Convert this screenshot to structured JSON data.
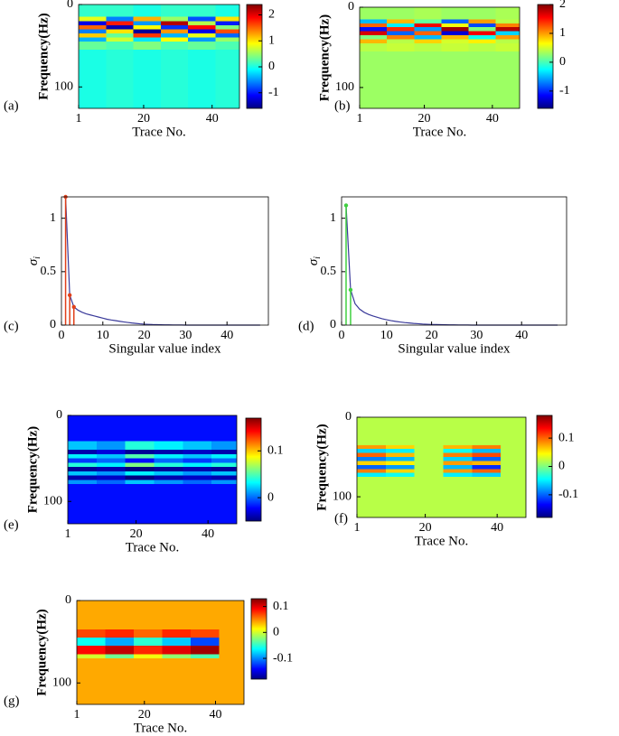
{
  "chart_data": [
    {
      "type": "heatmap",
      "label": "(a)",
      "xlabel": "Trace No.",
      "ylabel": "Frequency(Hz)",
      "xlim": [
        1,
        48
      ],
      "ylim": [
        0,
        126
      ],
      "xticks": [
        1,
        20,
        40
      ],
      "yticks": [
        0,
        100
      ],
      "clim": [
        -1.6,
        2.4
      ],
      "cticks": [
        -1,
        0,
        1,
        2
      ],
      "colormap": "jet",
      "xbins": [
        1,
        9,
        17,
        25,
        33,
        41,
        48
      ],
      "ybins": [
        0,
        15,
        20,
        25,
        30,
        35,
        40,
        45,
        55,
        126
      ],
      "values": [
        [
          0.1,
          0.1,
          0,
          0.1,
          0.1,
          0
        ],
        [
          0.8,
          -0.6,
          1.2,
          0.5,
          -0.8,
          1.0
        ],
        [
          -1.2,
          1.8,
          -0.5,
          2.2,
          0.6,
          -1.0
        ],
        [
          1.5,
          -1.4,
          0.9,
          -0.9,
          1.9,
          0.4
        ],
        [
          -0.6,
          1.0,
          -1.5,
          1.3,
          -1.2,
          1.6
        ],
        [
          1.1,
          0.3,
          1.7,
          -0.4,
          0.8,
          -0.7
        ],
        [
          -0.4,
          0.7,
          -0.2,
          0.9,
          -0.5,
          0.5
        ],
        [
          0.3,
          0.2,
          0.4,
          0.2,
          0.3,
          0.2
        ],
        [
          0,
          0.05,
          0,
          0.05,
          0,
          0.05
        ]
      ]
    },
    {
      "type": "heatmap",
      "label": "(b)",
      "xlabel": "Trace No.",
      "ylabel": "Frequency(Hz)",
      "xlim": [
        1,
        48
      ],
      "ylim": [
        0,
        126
      ],
      "xticks": [
        1,
        20,
        40
      ],
      "yticks": [
        0,
        100
      ],
      "clim": [
        -1.6,
        2
      ],
      "cticks": [
        -1,
        0,
        1,
        2
      ],
      "colormap": "jet",
      "xbins": [
        1,
        9,
        17,
        25,
        33,
        41,
        48
      ],
      "ybins": [
        0,
        15,
        20,
        25,
        30,
        35,
        40,
        45,
        55,
        126
      ],
      "values": [
        [
          0.3,
          0.3,
          0.35,
          0.3,
          0.3,
          0.35
        ],
        [
          -0.5,
          0.9,
          0.1,
          -0.8,
          1.0,
          0.4
        ],
        [
          1.2,
          -0.3,
          1.6,
          0.6,
          -0.9,
          1.1
        ],
        [
          -1.1,
          1.4,
          -0.6,
          1.9,
          0.2,
          1.8
        ],
        [
          1.7,
          -0.8,
          1.2,
          -1.3,
          1.6,
          -0.4
        ],
        [
          0.2,
          1.1,
          -0.5,
          0.9,
          -0.2,
          1.0
        ],
        [
          0.9,
          0.4,
          0.8,
          0.5,
          0.7,
          0.4
        ],
        [
          0.4,
          0.45,
          0.4,
          0.45,
          0.4,
          0.45
        ],
        [
          0.3,
          0.3,
          0.3,
          0.3,
          0.3,
          0.3
        ]
      ]
    },
    {
      "type": "line",
      "label": "(c)",
      "xlabel": "Singular value index",
      "ylabel": "σ",
      "ylabel_sub": "i",
      "xlim": [
        0,
        50
      ],
      "ylim": [
        0,
        1.2
      ],
      "xticks": [
        0,
        10,
        20,
        30,
        40
      ],
      "yticks": [
        0,
        0.5,
        1
      ],
      "series": [
        {
          "color": "#3a3a9a",
          "x": [
            1,
            2,
            3,
            4,
            5,
            6,
            7,
            8,
            9,
            10,
            11,
            12,
            13,
            14,
            15,
            16,
            17,
            18,
            19,
            20,
            21,
            22,
            23,
            24,
            25,
            26,
            27,
            28,
            29,
            30,
            31,
            32,
            33,
            34,
            35,
            36,
            37,
            38,
            39,
            40,
            41,
            42,
            43,
            44,
            45,
            46,
            47,
            48
          ],
          "values": [
            1.2,
            0.28,
            0.17,
            0.14,
            0.12,
            0.105,
            0.095,
            0.085,
            0.075,
            0.065,
            0.055,
            0.048,
            0.042,
            0.036,
            0.03,
            0.025,
            0.02,
            0.016,
            0.012,
            0.009,
            0.007,
            0.005,
            0.004,
            0.003,
            0.002,
            0.002,
            0.001,
            0.001,
            0.001,
            0,
            0,
            0,
            0,
            0,
            0,
            0,
            0,
            0,
            0,
            0,
            0,
            0,
            0,
            0,
            0,
            0,
            0,
            0
          ]
        }
      ],
      "stems": {
        "color": "#e0401a",
        "x": [
          1,
          2,
          3
        ],
        "values": [
          1.2,
          0.28,
          0.17
        ]
      }
    },
    {
      "type": "line",
      "label": "(d)",
      "xlabel": "Singular value index",
      "ylabel": "σ",
      "ylabel_sub": "i",
      "xlim": [
        0,
        50
      ],
      "ylim": [
        0,
        1.2
      ],
      "xticks": [
        0,
        10,
        20,
        30,
        40
      ],
      "yticks": [
        0,
        0.5,
        1
      ],
      "series": [
        {
          "color": "#3a3a9a",
          "x": [
            1,
            2,
            3,
            4,
            5,
            6,
            7,
            8,
            9,
            10,
            11,
            12,
            13,
            14,
            15,
            16,
            17,
            18,
            19,
            20,
            21,
            22,
            23,
            24,
            25,
            26,
            27,
            28,
            29,
            30,
            31,
            32,
            33,
            34,
            35,
            36,
            37,
            38,
            39,
            40,
            41,
            42,
            43,
            44,
            45,
            46,
            47,
            48
          ],
          "values": [
            1.12,
            0.33,
            0.2,
            0.15,
            0.12,
            0.1,
            0.085,
            0.072,
            0.06,
            0.05,
            0.042,
            0.035,
            0.029,
            0.024,
            0.02,
            0.016,
            0.013,
            0.01,
            0.008,
            0.006,
            0.005,
            0.004,
            0.003,
            0.002,
            0.002,
            0.001,
            0.001,
            0.001,
            0,
            0,
            0,
            0,
            0,
            0,
            0,
            0,
            0,
            0,
            0,
            0,
            0,
            0,
            0,
            0,
            0,
            0,
            0,
            0
          ]
        }
      ],
      "stems": {
        "color": "#40d040",
        "x": [
          1,
          2
        ],
        "values": [
          1.12,
          0.33
        ]
      }
    },
    {
      "type": "heatmap",
      "label": "(e)",
      "xlabel": "Trace No.",
      "ylabel": "Frequency(Hz)",
      "xlim": [
        1,
        48
      ],
      "ylim": [
        0,
        126
      ],
      "xticks": [
        1,
        20,
        40
      ],
      "yticks": [
        0,
        100
      ],
      "clim": [
        -0.05,
        0.17
      ],
      "cticks": [
        0,
        0.1
      ],
      "colormap": "jet",
      "xbins": [
        1,
        9,
        17,
        25,
        33,
        41,
        48
      ],
      "ybins": [
        0,
        30,
        40,
        45,
        50,
        55,
        60,
        65,
        70,
        75,
        80,
        126
      ],
      "values": [
        [
          -0.02,
          -0.02,
          -0.02,
          -0.02,
          -0.02,
          -0.02
        ],
        [
          0.02,
          0.01,
          0.04,
          0.03,
          0.02,
          0.01
        ],
        [
          -0.04,
          -0.03,
          -0.045,
          -0.04,
          -0.035,
          -0.04
        ],
        [
          0.03,
          0.02,
          0.05,
          0.03,
          0.02,
          0.03
        ],
        [
          -0.01,
          0,
          -0.02,
          0,
          -0.01,
          0
        ],
        [
          0.04,
          0.03,
          0.06,
          0.04,
          0.03,
          0.04
        ],
        [
          -0.045,
          -0.04,
          -0.05,
          -0.045,
          -0.04,
          -0.045
        ],
        [
          0.02,
          0.01,
          0.03,
          0.02,
          0.01,
          0.02
        ],
        [
          -0.04,
          -0.035,
          -0.05,
          -0.04,
          -0.035,
          -0.04
        ],
        [
          0.01,
          0,
          0.02,
          0.01,
          0,
          0.01
        ],
        [
          -0.02,
          -0.02,
          -0.02,
          -0.02,
          -0.02,
          -0.02
        ]
      ]
    },
    {
      "type": "heatmap",
      "label": "(f)",
      "xlabel": "Trace No.",
      "ylabel": "Frequency(Hz)",
      "xlim": [
        1,
        48
      ],
      "ylim": [
        0,
        126
      ],
      "xticks": [
        1,
        20,
        40
      ],
      "yticks": [
        0,
        100
      ],
      "clim": [
        -0.18,
        0.18
      ],
      "cticks": [
        -0.1,
        0,
        0.1
      ],
      "colormap": "jet",
      "xbins": [
        1,
        9,
        17,
        25,
        33,
        41,
        48
      ],
      "ybins": [
        0,
        35,
        40,
        45,
        50,
        55,
        60,
        65,
        70,
        75,
        126
      ],
      "values": [
        [
          0.02,
          0.02,
          0.02,
          0.02,
          0.02,
          0.02
        ],
        [
          0.08,
          0.06,
          0.02,
          0.07,
          0.09,
          0.02
        ],
        [
          -0.06,
          -0.05,
          0.02,
          -0.04,
          -0.07,
          0.02
        ],
        [
          0.1,
          0.07,
          0.02,
          0.09,
          0.11,
          0.02
        ],
        [
          -0.09,
          -0.07,
          0.02,
          -0.06,
          -0.1,
          0.02
        ],
        [
          0.06,
          0.05,
          0.02,
          0.08,
          0.07,
          0.02
        ],
        [
          -0.1,
          -0.08,
          0.02,
          -0.07,
          -0.12,
          0.02
        ],
        [
          0.09,
          0.06,
          0.02,
          0.08,
          0.1,
          0.02
        ],
        [
          -0.05,
          -0.04,
          0.02,
          -0.05,
          -0.06,
          0.02
        ],
        [
          0.02,
          0.02,
          0.02,
          0.02,
          0.02,
          0.02
        ]
      ]
    },
    {
      "type": "heatmap",
      "label": "(g)",
      "xlabel": "Trace No.",
      "ylabel": "Frequency(Hz)",
      "xlim": [
        1,
        48
      ],
      "ylim": [
        0,
        126
      ],
      "xticks": [
        1,
        20,
        40
      ],
      "yticks": [
        0,
        100
      ],
      "clim": [
        -0.18,
        0.13
      ],
      "cticks": [
        -0.1,
        0,
        0.1
      ],
      "colormap": "jet",
      "xbins": [
        1,
        9,
        17,
        25,
        33,
        41,
        48
      ],
      "ybins": [
        0,
        35,
        45,
        55,
        65,
        70,
        126
      ],
      "values": [
        [
          0.04,
          0.04,
          0.04,
          0.04,
          0.04,
          0.04
        ],
        [
          0.07,
          0.08,
          0.06,
          0.08,
          0.07,
          0.04
        ],
        [
          -0.06,
          -0.09,
          -0.05,
          -0.08,
          -0.12,
          0.04
        ],
        [
          0.09,
          0.11,
          0.08,
          0.1,
          0.12,
          0.04
        ],
        [
          0.0,
          -0.03,
          0.01,
          -0.02,
          -0.04,
          0.04
        ],
        [
          0.04,
          0.04,
          0.04,
          0.04,
          0.04,
          0.04
        ]
      ]
    }
  ]
}
